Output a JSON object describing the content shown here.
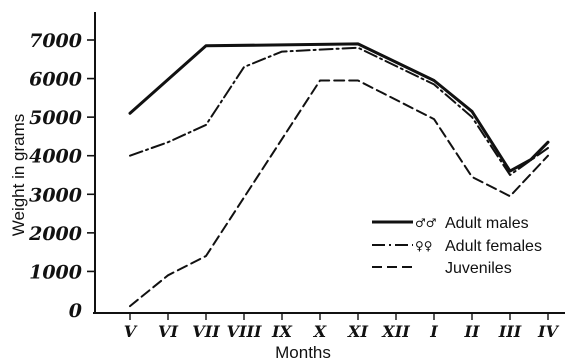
{
  "chart_data": {
    "type": "line",
    "xlabel": "Months",
    "ylabel": "Weight in grams",
    "categories": [
      "V",
      "VI",
      "VII",
      "VIII",
      "IX",
      "X",
      "XI",
      "XII",
      "I",
      "II",
      "III",
      "IV"
    ],
    "y_ticks": [
      "0",
      "1000",
      "2000",
      "3000",
      "4000",
      "5000",
      "6000",
      "7000"
    ],
    "ylim": [
      0,
      7000
    ],
    "grid": false,
    "legend_position": "right",
    "series": [
      {
        "name": "Adult males",
        "symbol": "♂♂",
        "dash": "solid",
        "x": [
          0,
          2,
          6,
          8,
          9,
          10,
          10.55,
          11
        ],
        "values": [
          5100,
          6850,
          6900,
          5950,
          5150,
          3600,
          3900,
          4350
        ]
      },
      {
        "name": "Adult females",
        "symbol": "♀♀",
        "dash": "dash-dot",
        "x": [
          0,
          1,
          2,
          3,
          4,
          6,
          8,
          9,
          10,
          11
        ],
        "values": [
          4000,
          4350,
          4800,
          6300,
          6700,
          6800,
          5850,
          5000,
          3500,
          4200
        ]
      },
      {
        "name": "Juveniles",
        "symbol": "",
        "dash": "dashed",
        "x": [
          0,
          1,
          2,
          5,
          6,
          8,
          9,
          10,
          11
        ],
        "values": [
          100,
          900,
          1400,
          5950,
          5950,
          4950,
          3450,
          2950,
          4000
        ]
      }
    ]
  }
}
